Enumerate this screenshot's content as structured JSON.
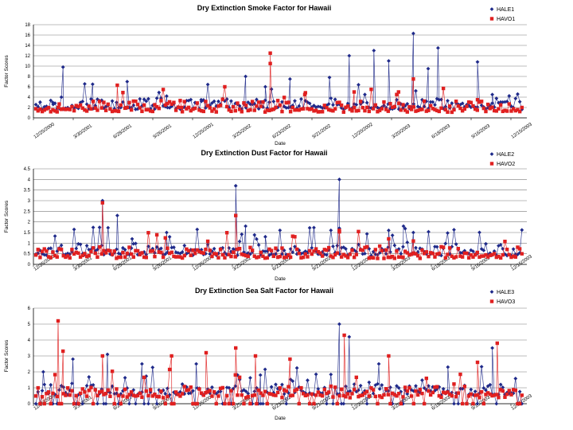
{
  "chart_data": [
    {
      "type": "scatter",
      "title": "Dry Extinction Smoke Factor for Hawaii",
      "xlabel": "Date",
      "ylabel": "Factor Scores",
      "ylim": [
        0,
        18
      ],
      "yticks": [
        0,
        2,
        4,
        6,
        8,
        10,
        12,
        14,
        16,
        18
      ],
      "categories": [
        "12/25/2000",
        "3/30/2001",
        "6/28/2001",
        "9/26/2001",
        "12/25/2001",
        "3/25/2002",
        "6/23/2002",
        "9/21/2002",
        "12/20/2002",
        "3/20/2003",
        "6/18/2003",
        "9/16/2003",
        "12/15/2003"
      ],
      "series": [
        {
          "name": "HALE1",
          "color": "#1f2a8a",
          "marker": "diamond",
          "peaks": [
            [
              0.04,
              2.6
            ],
            [
              0.06,
              9.8
            ],
            [
              0.12,
              6.5
            ],
            [
              0.19,
              7.0
            ],
            [
              0.27,
              4.2
            ],
            [
              0.34,
              3.5
            ],
            [
              0.43,
              8.0
            ],
            [
              0.47,
              6.0
            ],
            [
              0.52,
              7.5
            ],
            [
              0.6,
              7.8
            ],
            [
              0.64,
              12.0
            ],
            [
              0.69,
              13.0
            ],
            [
              0.72,
              11.0
            ],
            [
              0.77,
              16.3
            ],
            [
              0.8,
              9.5
            ],
            [
              0.82,
              13.5
            ],
            [
              0.9,
              10.8
            ],
            [
              0.93,
              4.5
            ]
          ]
        },
        {
          "name": "HAVO1",
          "color": "#e02020",
          "marker": "square",
          "peaks": [
            [
              0.05,
              2.0
            ],
            [
              0.17,
              6.3
            ],
            [
              0.3,
              2.0
            ],
            [
              0.48,
              10.5
            ],
            [
              0.48,
              12.5
            ],
            [
              0.55,
              4.5
            ],
            [
              0.65,
              5.0
            ],
            [
              0.74,
              5.0
            ],
            [
              0.77,
              7.5
            ],
            [
              0.9,
              3.5
            ]
          ]
        }
      ]
    },
    {
      "type": "scatter",
      "title": "Dry Extinction Dust Factor for Hawaii",
      "xlabel": "Date",
      "ylabel": "Factor Scores",
      "ylim": [
        0,
        4.5
      ],
      "yticks": [
        0,
        0.5,
        1,
        1.5,
        2,
        2.5,
        3,
        3.5,
        4,
        4.5
      ],
      "categories": [
        "12/25/2000",
        "3/30/2001",
        "6/28/2001",
        "9/26/2001",
        "12/25/2001",
        "3/25/2002",
        "6/23/2002",
        "9/21/2002",
        "12/20/2002",
        "3/20/2003",
        "6/18/2003",
        "9/16/2003",
        "12/15/2003"
      ],
      "series": [
        {
          "name": "HALE2",
          "color": "#1f2a8a",
          "marker": "diamond",
          "peaks": [
            [
              0.14,
              3.0
            ],
            [
              0.17,
              2.3
            ],
            [
              0.2,
              1.2
            ],
            [
              0.27,
              1.5
            ],
            [
              0.41,
              3.7
            ],
            [
              0.43,
              1.8
            ],
            [
              0.47,
              1.3
            ],
            [
              0.62,
              4.0
            ],
            [
              0.62,
              1.7
            ],
            [
              0.72,
              1.6
            ],
            [
              0.75,
              1.8
            ],
            [
              0.77,
              1.5
            ]
          ]
        },
        {
          "name": "HAVO2",
          "color": "#e02020",
          "marker": "square",
          "peaks": [
            [
              0.14,
              2.9
            ],
            [
              0.41,
              2.3
            ],
            [
              0.62,
              1.6
            ],
            [
              0.72,
              1.2
            ],
            [
              0.77,
              1.1
            ]
          ]
        }
      ]
    },
    {
      "type": "scatter",
      "title": "Dry Extinction Sea Salt Factor for Hawaii",
      "xlabel": "Date",
      "ylabel": "Factor Scores",
      "ylim": [
        0,
        6
      ],
      "yticks": [
        0,
        1,
        2,
        3,
        4,
        5,
        6
      ],
      "categories": [
        "12/25/2000",
        "3/30/2001",
        "6/28/2001",
        "9/26/2001",
        "12/25/2001",
        "3/25/2002",
        "6/23/2002",
        "9/21/2002",
        "12/20/2002",
        "3/20/2003",
        "6/18/2003",
        "9/16/2003",
        "12/15/2003"
      ],
      "series": [
        {
          "name": "HALE3",
          "color": "#1f2a8a",
          "marker": "diamond",
          "peaks": [
            [
              0.02,
              2.0
            ],
            [
              0.08,
              2.8
            ],
            [
              0.15,
              3.1
            ],
            [
              0.22,
              2.5
            ],
            [
              0.33,
              2.5
            ],
            [
              0.46,
              1.8
            ],
            [
              0.62,
              5.0
            ],
            [
              0.64,
              4.2
            ],
            [
              0.7,
              2.5
            ],
            [
              0.84,
              2.3
            ],
            [
              0.93,
              3.5
            ]
          ]
        },
        {
          "name": "HAVO3",
          "color": "#e02020",
          "marker": "square",
          "peaks": [
            [
              0.05,
              5.2
            ],
            [
              0.06,
              3.3
            ],
            [
              0.14,
              3.0
            ],
            [
              0.28,
              3.0
            ],
            [
              0.35,
              3.2
            ],
            [
              0.41,
              3.5
            ],
            [
              0.45,
              3.0
            ],
            [
              0.52,
              2.8
            ],
            [
              0.63,
              4.3
            ],
            [
              0.72,
              3.0
            ],
            [
              0.9,
              2.6
            ],
            [
              0.94,
              3.8
            ]
          ]
        }
      ]
    }
  ]
}
